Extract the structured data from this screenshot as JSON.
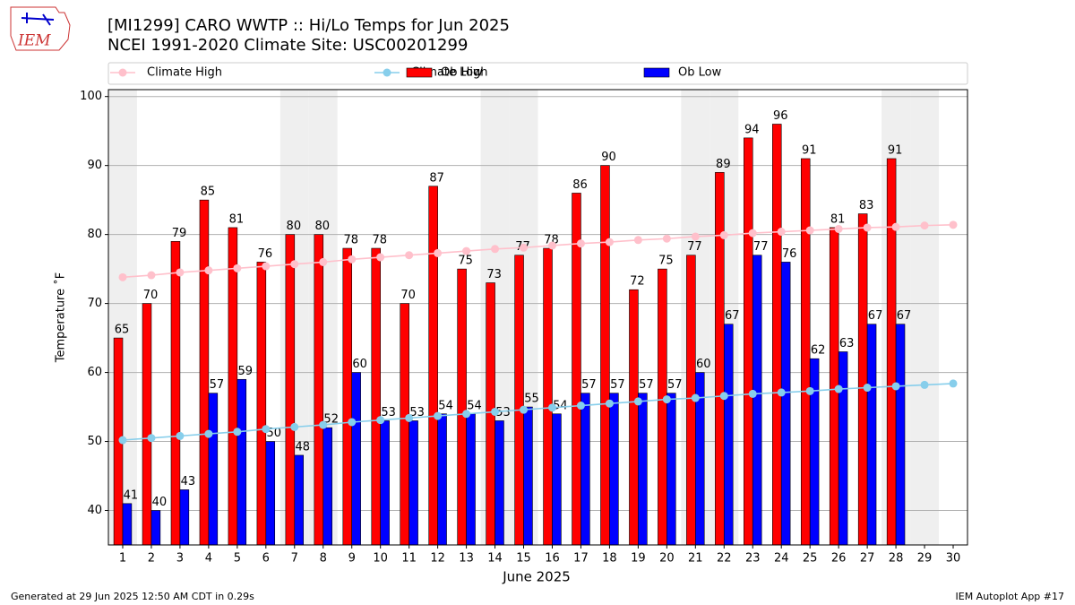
{
  "chart_data": {
    "type": "bar",
    "title": "[MI1299] CARO WWTP :: Hi/Lo Temps for Jun 2025",
    "subtitle": "NCEI 1991-2020 Climate Site: USC00201299",
    "xlabel": "June 2025",
    "ylabel": "Temperature ˚F",
    "x": [
      1,
      2,
      3,
      4,
      5,
      6,
      7,
      8,
      9,
      10,
      11,
      12,
      13,
      14,
      15,
      16,
      17,
      18,
      19,
      20,
      21,
      22,
      23,
      24,
      25,
      26,
      27,
      28,
      29,
      30
    ],
    "xticks": [
      1,
      2,
      3,
      4,
      5,
      6,
      7,
      8,
      9,
      10,
      11,
      12,
      13,
      14,
      15,
      16,
      17,
      18,
      19,
      20,
      21,
      22,
      23,
      24,
      25,
      26,
      27,
      28,
      29,
      30
    ],
    "xlim": [
      0.5,
      30.5
    ],
    "ylim": [
      35,
      101
    ],
    "yticks": [
      40,
      50,
      60,
      70,
      80,
      90,
      100
    ],
    "grid": true,
    "shaded_days": [
      1,
      7,
      8,
      14,
      15,
      21,
      22,
      28,
      29
    ],
    "series": [
      {
        "name": "Climate High",
        "kind": "line",
        "color": "#ffc0cb",
        "values": [
          73.8,
          74.1,
          74.5,
          74.8,
          75.1,
          75.4,
          75.7,
          76.0,
          76.4,
          76.7,
          77.0,
          77.3,
          77.6,
          77.9,
          78.1,
          78.4,
          78.7,
          78.9,
          79.2,
          79.4,
          79.7,
          79.9,
          80.2,
          80.4,
          80.6,
          80.8,
          81.0,
          81.1,
          81.3,
          81.4
        ]
      },
      {
        "name": "Climate Low",
        "kind": "line",
        "color": "#87ceeb",
        "values": [
          50.2,
          50.5,
          50.8,
          51.1,
          51.4,
          51.8,
          52.1,
          52.4,
          52.8,
          53.1,
          53.4,
          53.7,
          54.0,
          54.3,
          54.6,
          54.9,
          55.2,
          55.5,
          55.8,
          56.1,
          56.3,
          56.6,
          56.9,
          57.1,
          57.3,
          57.6,
          57.8,
          58.0,
          58.2,
          58.4
        ]
      },
      {
        "name": "Ob High",
        "kind": "bar",
        "color": "#ff0000",
        "offset": -1,
        "values": [
          65,
          70,
          79,
          85,
          81,
          76,
          80,
          80,
          78,
          78,
          70,
          87,
          75,
          73,
          77,
          78,
          86,
          90,
          72,
          75,
          77,
          89,
          94,
          96,
          91,
          81,
          83,
          91,
          null,
          null
        ]
      },
      {
        "name": "Ob Low",
        "kind": "bar",
        "color": "#0000ff",
        "offset": 1,
        "values": [
          41,
          40,
          43,
          57,
          59,
          50,
          48,
          52,
          60,
          53,
          53,
          54,
          54,
          53,
          55,
          54,
          57,
          57,
          57,
          57,
          60,
          67,
          77,
          76,
          62,
          63,
          67,
          67,
          null,
          null
        ]
      }
    ]
  },
  "logo_text": "IEM",
  "footer_left": "Generated at 29 Jun 2025 12:50 AM CDT in 0.29s",
  "footer_right": "IEM Autoplot App #17"
}
